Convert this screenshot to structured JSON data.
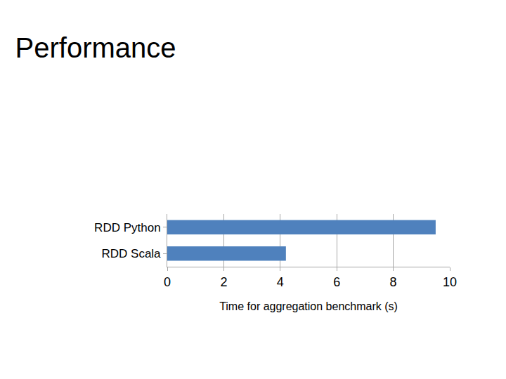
{
  "chart_data": {
    "type": "bar",
    "title": "Performance",
    "orientation": "horizontal",
    "categories": [
      "RDD Python",
      "RDD Scala"
    ],
    "values": [
      9.5,
      4.2
    ],
    "color": "#4f81bd",
    "x_label": "Time for aggregation benchmark (s)",
    "xlim": [
      0,
      10
    ],
    "xticks": [
      0,
      2,
      4,
      6,
      8,
      10
    ],
    "grid": true
  }
}
